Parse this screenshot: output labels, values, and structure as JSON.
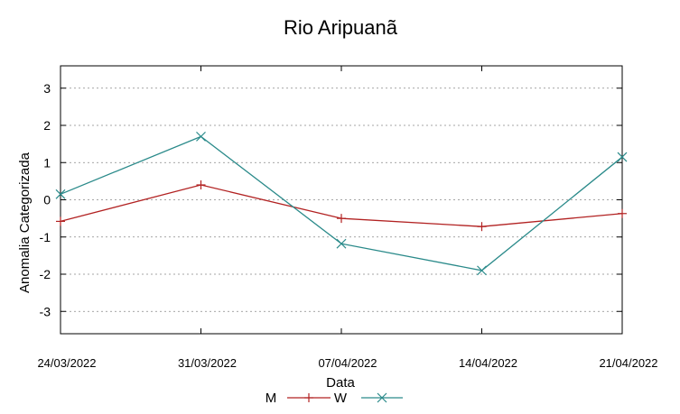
{
  "chart_data": {
    "type": "line",
    "title": "Rio Aripuanã",
    "xlabel": "Data",
    "ylabel": "Anomalia Categorizada",
    "categories": [
      "24/03/2022",
      "31/03/2022",
      "07/04/2022",
      "14/04/2022",
      "21/04/2022"
    ],
    "y_ticks": [
      "3",
      "2",
      "1",
      "0",
      "-1",
      "-2",
      "-3"
    ],
    "ylim": [
      -3.6,
      3.6
    ],
    "grid": true,
    "legend_position": "bottom",
    "series": [
      {
        "name": "M",
        "color": "#b22222",
        "marker": "plus",
        "values": [
          -0.58,
          0.4,
          -0.5,
          -0.72,
          -0.37
        ]
      },
      {
        "name": "W",
        "color": "#2a8a8a",
        "marker": "cross",
        "values": [
          0.15,
          1.7,
          -1.18,
          -1.9,
          1.15
        ]
      }
    ]
  }
}
